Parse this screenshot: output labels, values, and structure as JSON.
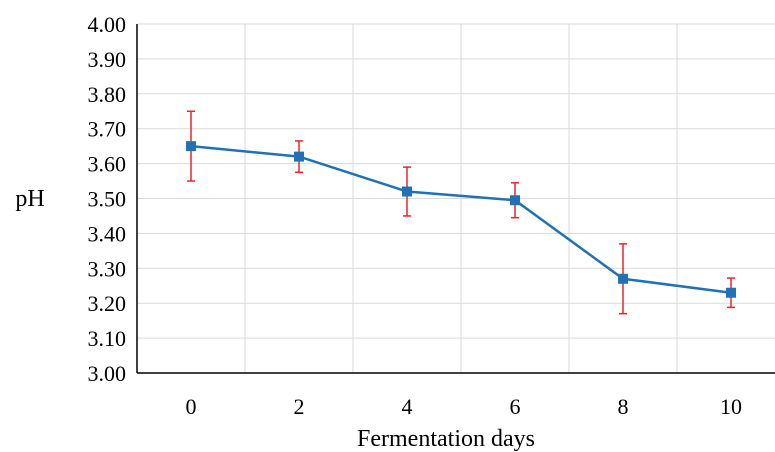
{
  "chart_data": {
    "type": "line",
    "title": "",
    "xlabel": "Fermentation days",
    "ylabel": "pH",
    "x": [
      0,
      2,
      4,
      6,
      8,
      10
    ],
    "x_tick_labels": [
      "0",
      "2",
      "4",
      "6",
      "8",
      "10"
    ],
    "y_tick_labels": [
      "3.00",
      "3.10",
      "3.20",
      "3.30",
      "3.40",
      "3.50",
      "3.60",
      "3.70",
      "3.80",
      "3.90",
      "4.00"
    ],
    "ylim": [
      3.0,
      4.0
    ],
    "grid": true,
    "legend": "none",
    "series": [
      {
        "values": [
          3.65,
          3.62,
          3.52,
          3.495,
          3.27,
          3.23
        ],
        "error": [
          0.1,
          0.045,
          0.07,
          0.05,
          0.1,
          0.042
        ],
        "line_color": "#2171b5",
        "marker_color": "#2171b5",
        "marker": "square",
        "error_bar_color": "#e8252f"
      }
    ],
    "colors": {
      "grid": "#d9d9d9",
      "axis": "#000000"
    }
  }
}
